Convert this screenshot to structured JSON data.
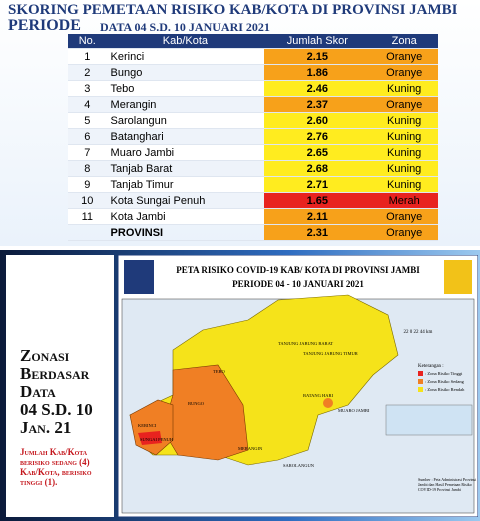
{
  "header": {
    "title": "SKORING PEMETAAN RISIKO KAB/KOTA DI PROVINSI JAMBI",
    "period": "PERIODE",
    "period_detail": "DATA 04 S.D. 10 JANUARI 2021"
  },
  "table": {
    "columns": [
      "No.",
      "Kab/Kota",
      "Jumlah Skor",
      "Zona"
    ],
    "rows": [
      {
        "no": "1",
        "name": "Kerinci",
        "score": "2.15",
        "zona": "Oranye",
        "color": "#f7a11a"
      },
      {
        "no": "2",
        "name": "Bungo",
        "score": "1.86",
        "zona": "Oranye",
        "color": "#f7a11a"
      },
      {
        "no": "3",
        "name": "Tebo",
        "score": "2.46",
        "zona": "Kuning",
        "color": "#ffec1f"
      },
      {
        "no": "4",
        "name": "Merangin",
        "score": "2.37",
        "zona": "Oranye",
        "color": "#f7a11a"
      },
      {
        "no": "5",
        "name": "Sarolangun",
        "score": "2.60",
        "zona": "Kuning",
        "color": "#ffec1f"
      },
      {
        "no": "6",
        "name": "Batanghari",
        "score": "2.76",
        "zona": "Kuning",
        "color": "#ffec1f"
      },
      {
        "no": "7",
        "name": "Muaro Jambi",
        "score": "2.65",
        "zona": "Kuning",
        "color": "#ffec1f"
      },
      {
        "no": "8",
        "name": "Tanjab Barat",
        "score": "2.68",
        "zona": "Kuning",
        "color": "#ffec1f"
      },
      {
        "no": "9",
        "name": "Tanjab Timur",
        "score": "2.71",
        "zona": "Kuning",
        "color": "#ffec1f"
      },
      {
        "no": "10",
        "name": "Kota Sungai Penuh",
        "score": "1.65",
        "zona": "Merah",
        "color": "#e8231f"
      },
      {
        "no": "11",
        "name": "Kota Jambi",
        "score": "2.11",
        "zona": "Oranye",
        "color": "#f7a11a"
      }
    ],
    "total": {
      "name": "PROVINSI",
      "score": "2.31",
      "zona": "Oranye",
      "color": "#f7a11a"
    }
  },
  "side": {
    "heading": [
      "Zonasi",
      "Berdasar",
      "Data",
      "04 S.D. 10",
      "Jan. 21"
    ],
    "note": "Jumlah Kab/Kota berisiko sedang (4) Kab/Kota, berisiko tinggi (1)."
  },
  "map": {
    "title": "PETA RISIKO COVID-19 KAB/ KOTA DI PROVINSI JAMBI",
    "subtitle": "PERIODE 04 - 10 JANUARI 2021",
    "regions": [
      "TANJUNG JABUNG BARAT",
      "TANJUNG JABUNG TIMUR",
      "TEBO",
      "BUNGO",
      "BATANG HARI",
      "MUARO JAMBI",
      "KERINCI",
      "SUNGAI PENUH",
      "MERANGIN",
      "SAROLANGUN"
    ],
    "scale": "22   0   22   44 km",
    "legend_title": "Keterangan :",
    "legend": [
      {
        "label": ": Zona Risiko Tinggi",
        "color": "#e8231f"
      },
      {
        "label": ": Zona Risiko Sedang",
        "color": "#f07f24"
      },
      {
        "label": ": Zona Risiko Rendah",
        "color": "#f5e31a"
      }
    ],
    "source": "Sumber : Peta Administrasi Provinsi Jambi dan Hasil Pemetaan Risiko COVID-19 Provinsi Jambi"
  }
}
